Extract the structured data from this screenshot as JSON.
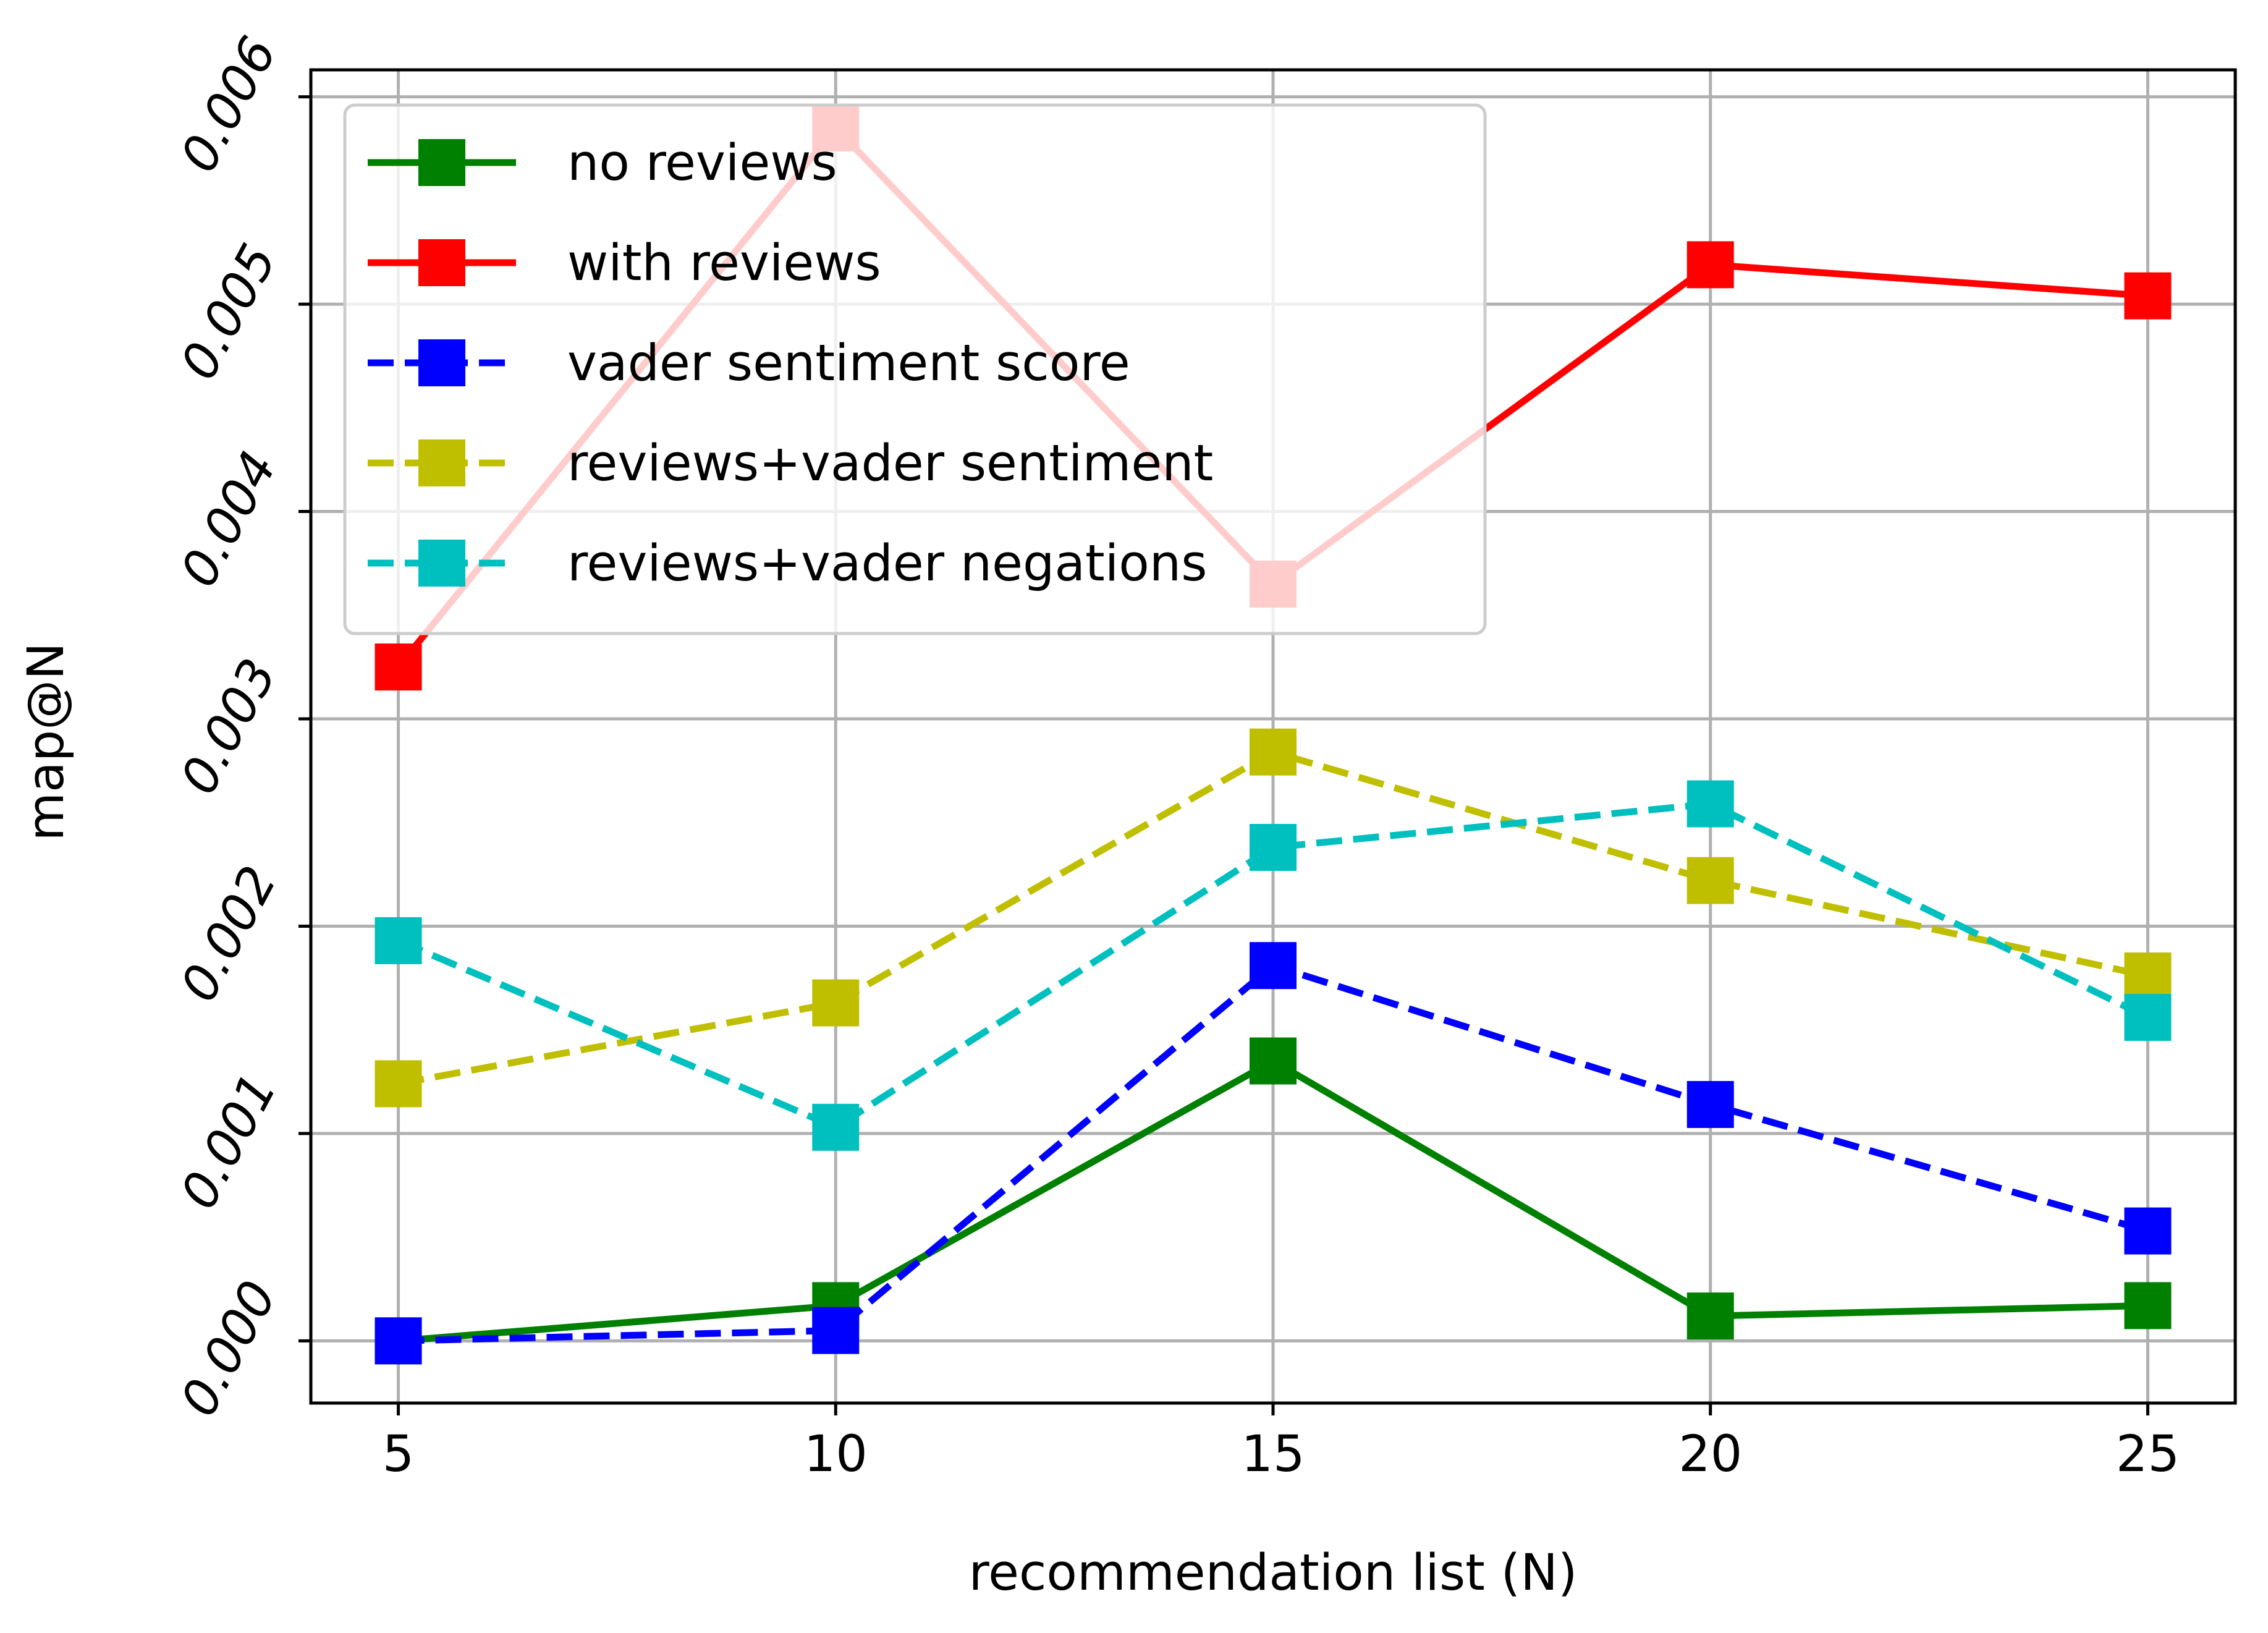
{
  "chart_data": {
    "type": "line",
    "title": "",
    "xlabel": "recommendation list (N)",
    "ylabel": "map@N",
    "x": [
      5,
      10,
      15,
      20,
      25
    ],
    "xlim": [
      4,
      26
    ],
    "ylim": [
      -0.0003,
      0.00613
    ],
    "xticks": [
      5,
      10,
      15,
      20,
      25
    ],
    "yticks": [
      0.0,
      0.001,
      0.002,
      0.003,
      0.004,
      0.005,
      0.006
    ],
    "ytick_labels": [
      "0.000",
      "0.001",
      "0.002",
      "0.003",
      "0.004",
      "0.005",
      "0.006"
    ],
    "grid": true,
    "legend_position": "upper-left",
    "series": [
      {
        "name": "no reviews",
        "values": [
          0.0,
          0.00017,
          0.00135,
          0.00012,
          0.00017
        ],
        "color": "#008000",
        "dashed": false
      },
      {
        "name": "with reviews",
        "values": [
          0.00325,
          0.00585,
          0.00365,
          0.00519,
          0.00504
        ],
        "color": "#ff0000",
        "dashed": false
      },
      {
        "name": "vader sentiment score",
        "values": [
          0.0,
          5e-05,
          0.00181,
          0.00114,
          0.00053
        ],
        "color": "#0000ff",
        "dashed": true
      },
      {
        "name": "reviews+vader sentiment",
        "values": [
          0.00124,
          0.00163,
          0.00284,
          0.00222,
          0.00176
        ],
        "color": "#bfbf00",
        "dashed": true
      },
      {
        "name": "reviews+vader negations",
        "values": [
          0.00193,
          0.00103,
          0.00238,
          0.00259,
          0.00156
        ],
        "color": "#00bfbf",
        "dashed": true
      }
    ]
  }
}
